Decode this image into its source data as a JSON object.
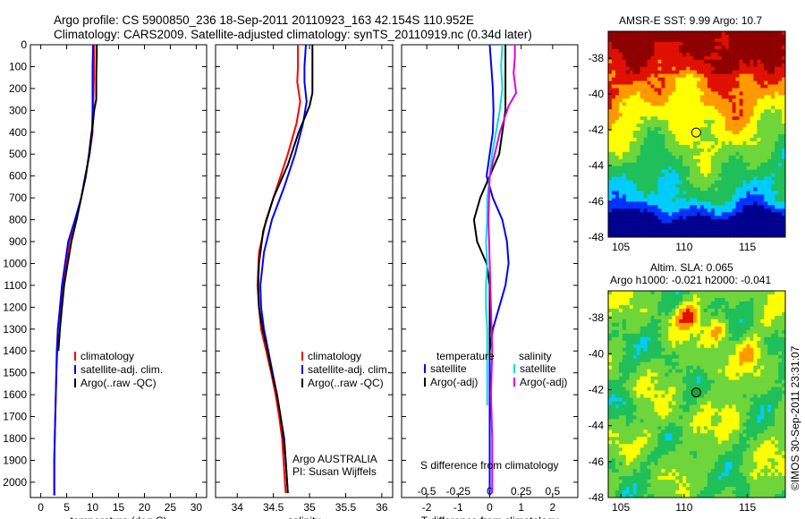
{
  "header": {
    "line1": "Argo profile: CS 5900850_236 18-Sep-2011 20110923_163 42.154S 110.952E",
    "line2": "Climatology: CARS2009. Satellite-adjusted climatology: synTS_20110919.nc (0.34d later)"
  },
  "side_stamp": "©IMOS 30-Sep-2011 23:31:07",
  "colors": {
    "climatology": "#ff0000",
    "satellite": "#0000ff",
    "argo": "#000000",
    "sat_salinity": "#00e0e0",
    "argo_salinity": "#e000e0"
  },
  "chart_data": [
    {
      "type": "line",
      "xlabel": "temperature (deg C)",
      "ylabel": "",
      "xlim": [
        -2,
        32
      ],
      "ylim": [
        2070,
        0
      ],
      "xticks": [
        "0",
        "5",
        "10",
        "15",
        "20",
        "25",
        "30"
      ],
      "yticks": [
        "0",
        "100",
        "200",
        "300",
        "400",
        "500",
        "600",
        "700",
        "800",
        "900",
        "1000",
        "1100",
        "1200",
        "1300",
        "1400",
        "1500",
        "1600",
        "1700",
        "1800",
        "1900",
        "2000"
      ],
      "legend": [
        "climatology",
        "satellite-adj. clim.",
        "Argo(..raw -QC)"
      ],
      "series": [
        {
          "name": "climatology",
          "color": "#ff0000",
          "x": [
            10.3,
            10.3,
            10.2,
            10.1,
            10.0,
            9.4,
            8.6,
            7.8,
            6.8,
            5.5,
            4.9,
            4.3,
            3.8,
            3.3,
            3.2,
            3.0,
            2.9,
            2.8,
            2.7,
            2.6,
            2.6
          ],
          "y": [
            0,
            100,
            200,
            300,
            400,
            500,
            600,
            700,
            800,
            900,
            1000,
            1100,
            1200,
            1300,
            1400,
            1500,
            1600,
            1700,
            1800,
            1900,
            2060
          ]
        },
        {
          "name": "satellite-adj. clim.",
          "color": "#0000ff",
          "x": [
            10.1,
            10.0,
            10.0,
            10.0,
            9.9,
            9.4,
            8.6,
            7.8,
            6.6,
            5.3,
            4.7,
            4.1,
            3.7,
            3.3,
            3.1,
            3.0,
            2.9,
            2.8,
            2.7,
            2.6,
            2.6
          ],
          "y": [
            0,
            100,
            200,
            300,
            400,
            500,
            600,
            700,
            800,
            900,
            1000,
            1100,
            1200,
            1300,
            1400,
            1500,
            1600,
            1700,
            1800,
            1900,
            2060
          ]
        },
        {
          "name": "Argo(..raw -QC)",
          "color": "#000000",
          "x": [
            10.8,
            10.8,
            10.7,
            10.7,
            10.3,
            10.1,
            9.7,
            9.3,
            8.7,
            7.8,
            6.9,
            5.9,
            5.2,
            4.5,
            4.1,
            3.7,
            3.4
          ],
          "y": [
            0,
            50,
            150,
            250,
            300,
            350,
            420,
            500,
            600,
            700,
            800,
            900,
            1000,
            1100,
            1200,
            1300,
            1400
          ]
        }
      ]
    },
    {
      "type": "line",
      "xlabel": "salinity",
      "xlim": [
        33.7,
        36.15
      ],
      "ylim": [
        2070,
        0
      ],
      "xticks": [
        "34",
        "34.5",
        "35",
        "35.5",
        "36"
      ],
      "legend": [
        "climatology",
        "satellite-adj. clim.",
        "Argo(..raw -QC)"
      ],
      "annotation": [
        "Argo AUSTRALIA",
        "PI: Susan Wijffels"
      ],
      "series": [
        {
          "name": "climatology",
          "color": "#ff0000",
          "x": [
            34.84,
            34.84,
            34.83,
            34.87,
            34.82,
            34.7,
            34.55,
            34.4,
            34.3,
            34.28,
            34.3,
            34.33,
            34.4,
            34.47,
            34.53,
            34.58,
            34.62,
            34.67
          ],
          "y": [
            0,
            100,
            170,
            260,
            360,
            500,
            650,
            800,
            950,
            1100,
            1200,
            1300,
            1400,
            1500,
            1600,
            1700,
            1800,
            2050
          ]
        },
        {
          "name": "satellite-adj. clim.",
          "color": "#0000ff",
          "x": [
            34.95,
            34.93,
            34.93,
            34.96,
            34.91,
            34.8,
            34.65,
            34.48,
            34.37,
            34.32,
            34.33,
            34.37,
            34.43,
            34.49,
            34.55,
            34.6,
            34.65,
            34.7
          ],
          "y": [
            0,
            100,
            170,
            260,
            360,
            500,
            650,
            800,
            950,
            1100,
            1200,
            1300,
            1400,
            1500,
            1600,
            1700,
            1800,
            2050
          ]
        },
        {
          "name": "Argo(..raw -QC)",
          "color": "#000000",
          "x": [
            35.04,
            35.04,
            35.04,
            35.04,
            35.0,
            34.85,
            34.7,
            34.5,
            34.36,
            34.3,
            34.29,
            34.3,
            34.35,
            34.42,
            34.48,
            34.55,
            34.6,
            34.64,
            34.67,
            34.7
          ],
          "y": [
            0,
            60,
            130,
            220,
            280,
            400,
            550,
            700,
            850,
            1000,
            1100,
            1200,
            1300,
            1400,
            1500,
            1600,
            1700,
            1800,
            1900,
            2050
          ]
        }
      ]
    },
    {
      "type": "line",
      "xlabel": "T difference from climatology",
      "xlabel2": "S difference from climatology",
      "xlim": [
        -2.8,
        2.8
      ],
      "ylim": [
        2070,
        0
      ],
      "xticks": [
        "-2",
        "-1",
        "0",
        "1",
        "2"
      ],
      "xticks2": [
        "-0.5",
        "-0.25",
        "0",
        "0.25",
        "0.5"
      ],
      "legend_temperature": {
        "title": "temperature",
        "items": [
          "satellite",
          "Argo(-adj)"
        ]
      },
      "legend_salinity": {
        "title": "salinity",
        "items": [
          "satellite",
          "Argo(-adj)"
        ]
      },
      "series": [
        {
          "name": "satellite",
          "group": "temperature",
          "color": "#0000ff",
          "x": [
            0.0,
            0.05,
            0.1,
            0.12,
            0.1,
            0.0,
            -0.1,
            0.1,
            0.4,
            0.55,
            0.6,
            0.5,
            0.3,
            0.1,
            0.0,
            0.0,
            0.0,
            0.0
          ],
          "y": [
            0,
            100,
            200,
            300,
            400,
            500,
            600,
            700,
            800,
            900,
            1000,
            1100,
            1200,
            1300,
            1400,
            1600,
            1800,
            2060
          ]
        },
        {
          "name": "Argo(-adj)",
          "group": "temperature",
          "color": "#000000",
          "x": [
            0.5,
            0.5,
            0.5,
            0.5,
            0.4,
            0.3,
            0.0,
            -0.3,
            -0.5,
            -0.4,
            -0.1,
            0.0,
            0.0,
            0.0
          ],
          "y": [
            0,
            100,
            200,
            300,
            400,
            500,
            600,
            700,
            800,
            900,
            1000,
            1100,
            1200,
            1420
          ]
        },
        {
          "name": "satellite",
          "group": "salinity",
          "color": "#00e0e0",
          "x": [
            0.1,
            0.09,
            0.1,
            0.08,
            0.05,
            0.02,
            0.0,
            -0.02,
            -0.02,
            -0.03,
            -0.02,
            -0.03,
            -0.03,
            -0.02,
            -0.02
          ],
          "y": [
            0,
            100,
            200,
            300,
            400,
            500,
            600,
            700,
            800,
            900,
            1000,
            1100,
            1200,
            1300,
            1650
          ]
        },
        {
          "name": "Argo(-adj)",
          "group": "salinity",
          "color": "#e000e0",
          "x": [
            0.2,
            0.2,
            0.19,
            0.21,
            0.15,
            0.08,
            0.0,
            -0.01,
            0.0,
            0.01,
            0.02,
            0.01,
            0.02,
            0.02
          ],
          "y": [
            0,
            60,
            130,
            220,
            280,
            400,
            600,
            800,
            1000,
            1200,
            1400,
            1600,
            1800,
            2050
          ]
        }
      ]
    },
    {
      "type": "heatmap",
      "title": "AMSR-E SST: 9.99 Argo: 10.7",
      "xlim": [
        104,
        118
      ],
      "ylim": [
        -48,
        -36.5
      ],
      "xticks": [
        "105",
        "110",
        "115"
      ],
      "yticks": [
        "-38",
        "-40",
        "-42",
        "-44",
        "-46",
        "-48"
      ],
      "marker": {
        "lon": 110.952,
        "lat": -42.154,
        "color": "#ffff00"
      },
      "palette": [
        "#00008f",
        "#0033ff",
        "#00ccff",
        "#1fbf5a",
        "#6ed63a",
        "#ffff00",
        "#ff9900",
        "#e01000",
        "#8f0000"
      ]
    },
    {
      "type": "heatmap",
      "title": "Altim. SLA: 0.065",
      "subtitle": "Argo h1000: -0.021 h2000: -0.041",
      "xlim": [
        104,
        118
      ],
      "ylim": [
        -48,
        -36.5
      ],
      "xticks": [
        "105",
        "110",
        "115"
      ],
      "yticks": [
        "-38",
        "-40",
        "-42",
        "-44",
        "-46",
        "-48"
      ],
      "marker": {
        "lon": 110.952,
        "lat": -42.154,
        "color": "#2a9a3a"
      },
      "palette": [
        "#00008f",
        "#0066ff",
        "#00ccff",
        "#1fbf5a",
        "#6ed63a",
        "#ffff00",
        "#ff9900",
        "#e01000",
        "#8f0000"
      ]
    }
  ]
}
